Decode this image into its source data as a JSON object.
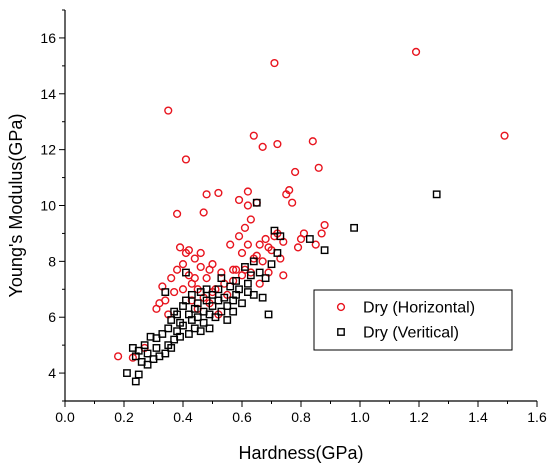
{
  "chart_data": {
    "type": "scatter",
    "xlabel": "Hardness(GPa)",
    "ylabel": "Young's Modulus(GPa)",
    "xlim": [
      0.0,
      1.6
    ],
    "ylim": [
      3.0,
      17.0
    ],
    "x_ticks": [
      "0.0",
      "0.2",
      "0.4",
      "0.6",
      "0.8",
      "1.0",
      "1.2",
      "1.4",
      "1.6"
    ],
    "y_ticks": [
      "4",
      "6",
      "8",
      "10",
      "12",
      "14",
      "16"
    ],
    "grid": false,
    "legend_position": "right-middle",
    "series": [
      {
        "name": "Dry (Horizontal)",
        "marker": "circle",
        "color": "#e8141e",
        "points": [
          [
            0.18,
            4.6
          ],
          [
            0.23,
            4.55
          ],
          [
            0.27,
            4.9
          ],
          [
            0.31,
            6.3
          ],
          [
            0.32,
            6.5
          ],
          [
            0.33,
            7.1
          ],
          [
            0.34,
            6.6
          ],
          [
            0.35,
            6.1
          ],
          [
            0.35,
            13.4
          ],
          [
            0.36,
            7.4
          ],
          [
            0.37,
            6.9
          ],
          [
            0.38,
            9.7
          ],
          [
            0.38,
            7.7
          ],
          [
            0.39,
            8.5
          ],
          [
            0.4,
            7.0
          ],
          [
            0.4,
            7.9
          ],
          [
            0.41,
            8.3
          ],
          [
            0.41,
            11.65
          ],
          [
            0.42,
            8.4
          ],
          [
            0.42,
            7.5
          ],
          [
            0.43,
            6.6
          ],
          [
            0.43,
            7.2
          ],
          [
            0.44,
            7.4
          ],
          [
            0.44,
            8.1
          ],
          [
            0.45,
            6.3
          ],
          [
            0.45,
            7.0
          ],
          [
            0.46,
            7.8
          ],
          [
            0.46,
            8.3
          ],
          [
            0.47,
            9.75
          ],
          [
            0.47,
            6.7
          ],
          [
            0.48,
            10.4
          ],
          [
            0.48,
            7.4
          ],
          [
            0.49,
            7.7
          ],
          [
            0.49,
            6.5
          ],
          [
            0.5,
            7.9
          ],
          [
            0.5,
            6.9
          ],
          [
            0.51,
            7.0
          ],
          [
            0.52,
            10.45
          ],
          [
            0.52,
            6.1
          ],
          [
            0.53,
            7.6
          ],
          [
            0.54,
            7.2
          ],
          [
            0.55,
            6.8
          ],
          [
            0.56,
            8.6
          ],
          [
            0.57,
            7.7
          ],
          [
            0.57,
            7.3
          ],
          [
            0.58,
            7.7
          ],
          [
            0.59,
            10.2
          ],
          [
            0.59,
            8.9
          ],
          [
            0.6,
            8.3
          ],
          [
            0.6,
            7.5
          ],
          [
            0.61,
            9.2
          ],
          [
            0.61,
            7.7
          ],
          [
            0.62,
            10.5
          ],
          [
            0.62,
            8.6
          ],
          [
            0.62,
            10.0
          ],
          [
            0.63,
            7.6
          ],
          [
            0.63,
            9.5
          ],
          [
            0.64,
            12.5
          ],
          [
            0.64,
            8.1
          ],
          [
            0.65,
            10.1
          ],
          [
            0.65,
            8.2
          ],
          [
            0.66,
            8.6
          ],
          [
            0.66,
            7.2
          ],
          [
            0.67,
            12.1
          ],
          [
            0.67,
            8.0
          ],
          [
            0.68,
            8.8
          ],
          [
            0.69,
            8.5
          ],
          [
            0.69,
            7.6
          ],
          [
            0.7,
            8.4
          ],
          [
            0.71,
            15.1
          ],
          [
            0.71,
            8.9
          ],
          [
            0.72,
            12.2
          ],
          [
            0.72,
            9.0
          ],
          [
            0.73,
            8.1
          ],
          [
            0.74,
            8.7
          ],
          [
            0.74,
            7.5
          ],
          [
            0.75,
            10.4
          ],
          [
            0.76,
            10.55
          ],
          [
            0.77,
            10.1
          ],
          [
            0.78,
            11.2
          ],
          [
            0.79,
            8.5
          ],
          [
            0.8,
            8.8
          ],
          [
            0.81,
            9.0
          ],
          [
            0.84,
            12.3
          ],
          [
            0.85,
            8.6
          ],
          [
            0.86,
            11.35
          ],
          [
            0.87,
            9.0
          ],
          [
            0.88,
            9.3
          ],
          [
            1.19,
            15.5
          ],
          [
            1.49,
            12.5
          ]
        ]
      },
      {
        "name": "Dry (Veritical)",
        "marker": "square",
        "color": "#000000",
        "points": [
          [
            0.21,
            4.0
          ],
          [
            0.23,
            4.9
          ],
          [
            0.24,
            3.7
          ],
          [
            0.24,
            4.6
          ],
          [
            0.25,
            3.95
          ],
          [
            0.25,
            4.8
          ],
          [
            0.26,
            4.4
          ],
          [
            0.27,
            5.0
          ],
          [
            0.28,
            4.7
          ],
          [
            0.28,
            4.3
          ],
          [
            0.29,
            5.3
          ],
          [
            0.3,
            4.5
          ],
          [
            0.31,
            4.9
          ],
          [
            0.31,
            5.25
          ],
          [
            0.32,
            4.6
          ],
          [
            0.33,
            5.4
          ],
          [
            0.34,
            6.9
          ],
          [
            0.34,
            4.7
          ],
          [
            0.35,
            5.0
          ],
          [
            0.35,
            5.6
          ],
          [
            0.36,
            5.9
          ],
          [
            0.36,
            4.9
          ],
          [
            0.37,
            5.2
          ],
          [
            0.37,
            6.2
          ],
          [
            0.38,
            5.5
          ],
          [
            0.38,
            6.1
          ],
          [
            0.39,
            5.8
          ],
          [
            0.39,
            5.3
          ],
          [
            0.4,
            6.4
          ],
          [
            0.4,
            5.7
          ],
          [
            0.41,
            6.6
          ],
          [
            0.41,
            7.6
          ],
          [
            0.42,
            6.1
          ],
          [
            0.42,
            5.4
          ],
          [
            0.43,
            6.8
          ],
          [
            0.43,
            5.9
          ],
          [
            0.44,
            6.3
          ],
          [
            0.44,
            5.6
          ],
          [
            0.45,
            6.5
          ],
          [
            0.45,
            6.0
          ],
          [
            0.46,
            5.5
          ],
          [
            0.46,
            6.9
          ],
          [
            0.47,
            6.2
          ],
          [
            0.47,
            5.8
          ],
          [
            0.48,
            6.6
          ],
          [
            0.48,
            7.0
          ],
          [
            0.49,
            6.1
          ],
          [
            0.49,
            5.6
          ],
          [
            0.5,
            6.8
          ],
          [
            0.5,
            6.4
          ],
          [
            0.51,
            6.0
          ],
          [
            0.52,
            7.0
          ],
          [
            0.52,
            6.6
          ],
          [
            0.53,
            6.2
          ],
          [
            0.53,
            7.4
          ],
          [
            0.54,
            6.7
          ],
          [
            0.55,
            6.4
          ],
          [
            0.55,
            5.9
          ],
          [
            0.56,
            7.1
          ],
          [
            0.57,
            6.6
          ],
          [
            0.57,
            6.2
          ],
          [
            0.58,
            7.3
          ],
          [
            0.58,
            6.8
          ],
          [
            0.59,
            7.0
          ],
          [
            0.6,
            6.5
          ],
          [
            0.61,
            7.8
          ],
          [
            0.62,
            7.2
          ],
          [
            0.62,
            6.9
          ],
          [
            0.63,
            7.5
          ],
          [
            0.64,
            8.0
          ],
          [
            0.64,
            6.8
          ],
          [
            0.65,
            10.1
          ],
          [
            0.66,
            7.6
          ],
          [
            0.67,
            6.7
          ],
          [
            0.68,
            7.4
          ],
          [
            0.69,
            6.1
          ],
          [
            0.7,
            7.9
          ],
          [
            0.71,
            9.1
          ],
          [
            0.72,
            8.3
          ],
          [
            0.73,
            8.9
          ],
          [
            0.83,
            8.8
          ],
          [
            0.88,
            8.4
          ],
          [
            0.98,
            9.2
          ],
          [
            1.26,
            10.4
          ]
        ]
      }
    ]
  }
}
